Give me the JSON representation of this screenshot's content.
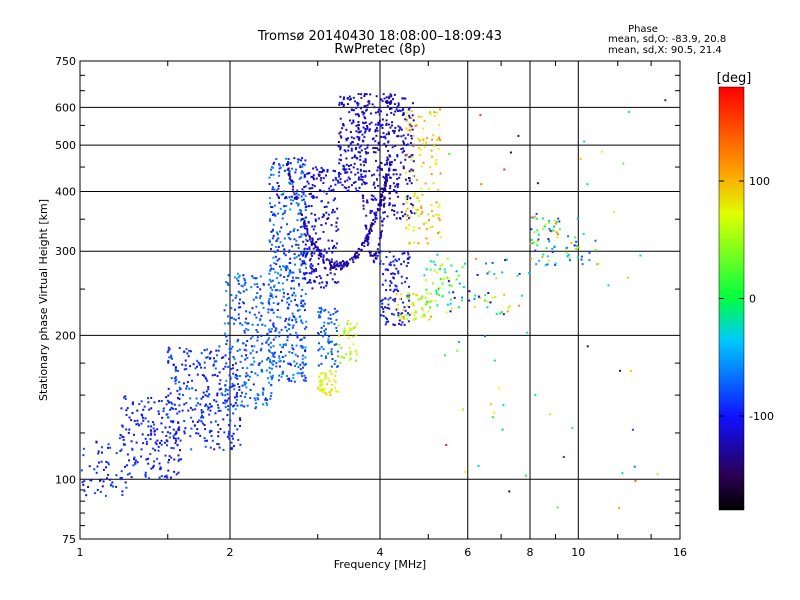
{
  "chart_data": {
    "type": "scatter",
    "title": "Tromsø 20140430 18:08:00–18:09:43",
    "subtitle": "RwPretec (8p)",
    "xlabel": "Frequency [MHz]",
    "ylabel": "Stationary phase Virtual Height [km]",
    "x_scale": "log",
    "y_scale": "log",
    "xlim": [
      1,
      16
    ],
    "ylim": [
      75,
      750
    ],
    "x_ticks": [
      1,
      2,
      4,
      6,
      8,
      10,
      16
    ],
    "x_tick_labels": [
      "1",
      "2",
      "4",
      "6",
      "8",
      "10",
      "16"
    ],
    "y_ticks": [
      75,
      100,
      200,
      300,
      400,
      500,
      600,
      750
    ],
    "y_tick_labels": [
      "75",
      "100",
      "200",
      "300",
      "400",
      "500",
      "600",
      "750"
    ],
    "grid": true,
    "stats": {
      "heading": "Phase",
      "line_o": "mean, sd,O:  -83.9, 20.8",
      "line_x": "mean, sd,X:  90.5, 21.4"
    },
    "colorbar": {
      "label": "[deg]",
      "range": [
        -180,
        180
      ],
      "ticks": [
        100,
        0,
        -100
      ],
      "tick_labels": [
        "100",
        "0",
        "-100"
      ]
    },
    "clusters": [
      {
        "n": 60,
        "f": [
          1.0,
          1.25
        ],
        "h": [
          92,
          120
        ],
        "phase": [
          -120,
          -70
        ]
      },
      {
        "n": 180,
        "f": [
          1.2,
          1.6
        ],
        "h": [
          100,
          150
        ],
        "phase": [
          -120,
          -80
        ]
      },
      {
        "n": 280,
        "f": [
          1.5,
          2.1
        ],
        "h": [
          115,
          190
        ],
        "phase": [
          -115,
          -70
        ]
      },
      {
        "n": 260,
        "f": [
          1.95,
          2.45
        ],
        "h": [
          140,
          270
        ],
        "phase": [
          -100,
          -50
        ]
      },
      {
        "n": 460,
        "f": [
          2.4,
          2.85
        ],
        "h": [
          160,
          470
        ],
        "phase": [
          -110,
          -50
        ]
      },
      {
        "n": 200,
        "f": [
          2.8,
          3.3
        ],
        "h": [
          250,
          450
        ],
        "phase": [
          -130,
          -95
        ]
      },
      {
        "n": 70,
        "f": [
          3.0,
          3.3
        ],
        "h": [
          170,
          230
        ],
        "phase": [
          -90,
          -60
        ]
      },
      {
        "n": 45,
        "f": [
          3.0,
          3.3
        ],
        "h": [
          150,
          170
        ],
        "phase": [
          60,
          95
        ]
      },
      {
        "n": 40,
        "f": [
          3.3,
          3.6
        ],
        "h": [
          175,
          215
        ],
        "phase": [
          30,
          80
        ]
      },
      {
        "n": 160,
        "f": [
          3.3,
          3.75
        ],
        "h": [
          400,
          640
        ],
        "phase": [
          -130,
          -95
        ]
      },
      {
        "n": 320,
        "f": [
          3.7,
          4.7
        ],
        "h": [
          350,
          640
        ],
        "phase": [
          -135,
          -100
        ]
      },
      {
        "n": 110,
        "f": [
          4.0,
          4.6
        ],
        "h": [
          210,
          300
        ],
        "phase": [
          -120,
          -85
        ]
      },
      {
        "n": 120,
        "f": [
          4.5,
          5.3
        ],
        "h": [
          310,
          600
        ],
        "phase": [
          60,
          120
        ]
      },
      {
        "n": 55,
        "f": [
          4.3,
          5.1
        ],
        "h": [
          215,
          245
        ],
        "phase": [
          40,
          100
        ]
      },
      {
        "n": 45,
        "f": [
          4.9,
          5.6
        ],
        "h": [
          220,
          290
        ],
        "phase": [
          -40,
          80
        ]
      },
      {
        "n": 50,
        "f": [
          5.5,
          8.0
        ],
        "h": [
          220,
          290
        ],
        "phase": [
          -130,
          120
        ]
      },
      {
        "n": 55,
        "f": [
          8.0,
          9.2
        ],
        "h": [
          280,
          360
        ],
        "phase": [
          -100,
          140
        ]
      },
      {
        "n": 25,
        "f": [
          9.4,
          11.0
        ],
        "h": [
          280,
          330
        ],
        "phase": [
          -120,
          120
        ]
      },
      {
        "n": 60,
        "f": [
          5.0,
          15.5
        ],
        "h": [
          78,
          640
        ],
        "phase": [
          -150,
          170
        ]
      }
    ],
    "arcs": [
      {
        "n": 220,
        "f": [
          2.6,
          4.2
        ],
        "h_low": 280,
        "h_high": 460,
        "phase": [
          -140,
          -110
        ]
      },
      {
        "n": 90,
        "f": [
          3.6,
          4.2
        ],
        "h_low": 290,
        "h_high": 620,
        "phase": [
          -140,
          -110
        ]
      }
    ]
  }
}
